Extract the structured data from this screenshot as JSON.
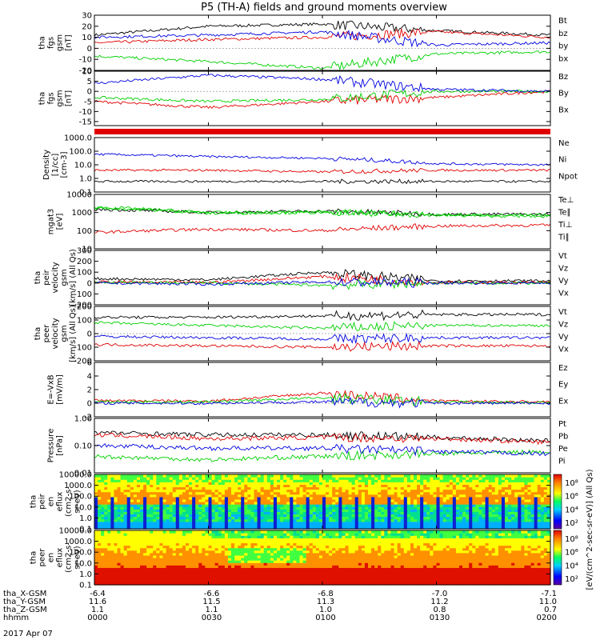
{
  "title": "P5 (TH-A) fields and ground moments overview",
  "colors": {
    "black": "#000000",
    "red": "#e00000",
    "green": "#00d000",
    "blue": "#0000e0"
  },
  "panels": [
    {
      "id": "fgs-gsm",
      "ylabel": [
        "tha",
        "fgs",
        "gsm",
        "[nT]"
      ],
      "yticks": [
        "30",
        "20",
        "10",
        "0",
        "-10",
        "-20"
      ],
      "legend": [
        {
          "t": "Bt",
          "c": "black"
        },
        {
          "t": "bz",
          "c": "red"
        },
        {
          "t": "by",
          "c": "green"
        },
        {
          "t": "bx",
          "c": "blue"
        }
      ]
    },
    {
      "id": "fgs-gsm2",
      "ylabel": [
        "tha",
        "fgs",
        "gsm",
        "[nT]"
      ],
      "yticks": [
        "10",
        "5",
        "0",
        "-5",
        "-10",
        "-15"
      ],
      "legend": [
        {
          "t": "Bz",
          "c": "red"
        },
        {
          "t": "By",
          "c": "green"
        },
        {
          "t": "Bx",
          "c": "blue"
        }
      ]
    },
    {
      "id": "density",
      "ylabel": [
        "Density",
        "[1/cc]",
        "[cm-3]"
      ],
      "yticks": [
        "1000.0",
        "100.0",
        "10.0",
        "1.0",
        "0.1"
      ],
      "legend": [
        {
          "t": "Ne",
          "c": "red"
        },
        {
          "t": "Ni",
          "c": "black"
        },
        {
          "t": "Npot",
          "c": "blue"
        }
      ]
    },
    {
      "id": "temperature",
      "ylabel": [
        "mgat3",
        "[eV]"
      ],
      "yticks": [
        "10000",
        "1000",
        "100",
        "10"
      ],
      "legend": [
        {
          "t": "Te⊥",
          "c": "red"
        },
        {
          "t": "Te∥",
          "c": "black"
        },
        {
          "t": "Ti⊥",
          "c": "green"
        },
        {
          "t": "Ti∥",
          "c": "green"
        }
      ]
    },
    {
      "id": "velocity1",
      "ylabel": [
        "tha",
        "peir",
        "velocity",
        "gsm",
        "[km/s] (All Qs)"
      ],
      "yticks": [
        "300",
        "200",
        "100",
        "0",
        "-100",
        "-200"
      ],
      "legend": [
        {
          "t": "Vt",
          "c": "black"
        },
        {
          "t": "Vz",
          "c": "red"
        },
        {
          "t": "Vy",
          "c": "green"
        },
        {
          "t": "Vx",
          "c": "blue"
        }
      ]
    },
    {
      "id": "velocity2",
      "ylabel": [
        "tha",
        "peer",
        "velocity",
        "gsm",
        "[km/s] (All Qs)"
      ],
      "yticks": [
        "200",
        "100",
        "0",
        "-100",
        "-200"
      ],
      "legend": [
        {
          "t": "Vt",
          "c": "black"
        },
        {
          "t": "Vz",
          "c": "red"
        },
        {
          "t": "Vy",
          "c": "green"
        },
        {
          "t": "Vx",
          "c": "blue"
        }
      ]
    },
    {
      "id": "efield",
      "ylabel": [
        "E=-VxB",
        "[mV/m]"
      ],
      "yticks": [
        "6",
        "4",
        "2",
        "0",
        "-2"
      ],
      "legend": [
        {
          "t": "Ez",
          "c": "red"
        },
        {
          "t": "Ey",
          "c": "green"
        },
        {
          "t": "Ex",
          "c": "blue"
        }
      ]
    },
    {
      "id": "pressure",
      "ylabel": [
        "Pressure",
        "[nPa]"
      ],
      "yticks": [
        "1.00",
        "0.10",
        "0.01"
      ],
      "legend": [
        {
          "t": "Pt",
          "c": "black"
        },
        {
          "t": "Pb",
          "c": "red"
        },
        {
          "t": "Pe",
          "c": "green"
        },
        {
          "t": "Pi",
          "c": "blue"
        }
      ]
    },
    {
      "id": "spec-ion",
      "ylabel": [
        "tha",
        "peir",
        "en",
        "eflux",
        "(cm2-s-",
        "sr-eV)"
      ],
      "yticks": [
        "10000.0",
        "1000.0",
        "100.0",
        "10.0",
        "1.0",
        "0.1"
      ]
    },
    {
      "id": "spec-ele",
      "ylabel": [
        "tha",
        "peer",
        "en",
        "eflux",
        "(cm2-s-",
        "sr-eV)"
      ],
      "yticks": [
        "10000.0",
        "1000.0",
        "100.0",
        "10.0",
        "1.0",
        "0.1"
      ]
    }
  ],
  "colorbar": {
    "ion_ticks": [
      "10⁸",
      "10⁶",
      "10⁴",
      "10²"
    ],
    "ele_ticks": [
      "10⁸",
      "10⁶",
      "10⁴",
      "10²"
    ],
    "label": "[eV/(cm^2-sec-sr-eV)] (All Qs)"
  },
  "xaxis": {
    "rows": [
      {
        "label": "tha_X-GSM",
        "values": [
          "-6.4",
          "-6.6",
          "-6.8",
          "-7.0",
          "-7.1"
        ]
      },
      {
        "label": "tha_Y-GSM",
        "values": [
          "11.6",
          "11.5",
          "11.3",
          "11.2",
          "11.0"
        ]
      },
      {
        "label": "tha_Z-GSM",
        "values": [
          "1.1",
          "1.1",
          "1.0",
          "0.8",
          "0.7"
        ]
      },
      {
        "label": "hhmm",
        "values": [
          "0000",
          "0030",
          "0100",
          "0130",
          "0200"
        ]
      }
    ],
    "date": "2017 Apr 07"
  },
  "chart_data": [
    {
      "type": "line",
      "title": "P5 (TH-A) fields and ground moments overview",
      "panel": "tha fgs gsm [nT]",
      "x": [
        "0000",
        "0030",
        "0100",
        "0130",
        "0200"
      ],
      "ylim": [
        -20,
        30
      ],
      "series": [
        {
          "name": "Bt",
          "values": [
            12,
            20,
            22,
            16,
            12
          ]
        },
        {
          "name": "bz",
          "values": [
            5,
            8,
            10,
            15,
            10
          ]
        },
        {
          "name": "by",
          "values": [
            -7,
            -12,
            -18,
            -5,
            -3
          ]
        },
        {
          "name": "bx",
          "values": [
            10,
            12,
            15,
            3,
            5
          ]
        }
      ]
    },
    {
      "type": "line",
      "panel": "tha fgs gsm [nT]",
      "x": [
        "0000",
        "0030",
        "0100",
        "0130",
        "0200"
      ],
      "ylim": [
        -17,
        10
      ],
      "series": [
        {
          "name": "Bz",
          "values": [
            -5,
            -8,
            -5,
            -3,
            0
          ]
        },
        {
          "name": "By",
          "values": [
            -3,
            -5,
            -4,
            0,
            0
          ]
        },
        {
          "name": "Bx",
          "values": [
            4,
            8,
            6,
            1,
            0
          ]
        }
      ]
    },
    {
      "type": "line",
      "panel": "Density [1/cc] [cm-3]",
      "yscale": "log",
      "x": [
        "0000",
        "0030",
        "0100",
        "0130",
        "0200"
      ],
      "ylim": [
        0.1,
        1000
      ],
      "series": [
        {
          "name": "Ne",
          "values": [
            4,
            4,
            3,
            4,
            4
          ]
        },
        {
          "name": "Ni",
          "values": [
            0.6,
            0.6,
            0.6,
            0.6,
            0.6
          ]
        },
        {
          "name": "Npot",
          "values": [
            60,
            40,
            30,
            12,
            10
          ]
        }
      ]
    },
    {
      "type": "line",
      "panel": "mgat3 [eV]",
      "yscale": "log",
      "x": [
        "0000",
        "0030",
        "0100",
        "0130",
        "0200"
      ],
      "ylim": [
        10,
        10000
      ],
      "series": [
        {
          "name": "Te⊥",
          "values": [
            80,
            120,
            100,
            180,
            200
          ]
        },
        {
          "name": "Te∥",
          "values": [
            1500,
            1000,
            1200,
            800,
            800
          ]
        },
        {
          "name": "Ti⊥",
          "values": [
            1800,
            900,
            1000,
            700,
            600
          ]
        },
        {
          "name": "Ti∥",
          "values": [
            2000,
            1000,
            1100,
            750,
            700
          ]
        }
      ]
    },
    {
      "type": "line",
      "panel": "tha peir velocity gsm [km/s] (All Qs)",
      "x": [
        "0000",
        "0030",
        "0100",
        "0130",
        "0200"
      ],
      "ylim": [
        -200,
        300
      ],
      "series": [
        {
          "name": "Vt",
          "values": [
            40,
            30,
            100,
            20,
            20
          ]
        },
        {
          "name": "Vz",
          "values": [
            10,
            5,
            60,
            5,
            5
          ]
        },
        {
          "name": "Vy",
          "values": [
            5,
            0,
            -20,
            0,
            0
          ]
        },
        {
          "name": "Vx",
          "values": [
            0,
            -10,
            10,
            0,
            0
          ]
        }
      ]
    },
    {
      "type": "line",
      "panel": "tha peer velocity gsm [km/s] (All Qs)",
      "x": [
        "0000",
        "0030",
        "0100",
        "0130",
        "0200"
      ],
      "ylim": [
        -200,
        200
      ],
      "series": [
        {
          "name": "Vt",
          "values": [
            120,
            120,
            130,
            140,
            140
          ]
        },
        {
          "name": "Vz",
          "values": [
            -80,
            -90,
            -100,
            -90,
            -90
          ]
        },
        {
          "name": "Vy",
          "values": [
            80,
            60,
            40,
            60,
            60
          ]
        },
        {
          "name": "Vx",
          "values": [
            -20,
            -30,
            -40,
            -30,
            -30
          ]
        }
      ]
    },
    {
      "type": "line",
      "panel": "E=-VxB [mV/m]",
      "x": [
        "0000",
        "0030",
        "0100",
        "0130",
        "0200"
      ],
      "ylim": [
        -2,
        6
      ],
      "series": [
        {
          "name": "Ez",
          "values": [
            0.4,
            0.3,
            1.5,
            0.3,
            0.2
          ]
        },
        {
          "name": "Ey",
          "values": [
            0.2,
            0.2,
            0.8,
            0.2,
            0.1
          ]
        },
        {
          "name": "Ex",
          "values": [
            0,
            0,
            0.2,
            0,
            0
          ]
        }
      ]
    },
    {
      "type": "line",
      "panel": "Pressure [nPa]",
      "yscale": "log",
      "x": [
        "0000",
        "0030",
        "0100",
        "0130",
        "0200"
      ],
      "ylim": [
        0.01,
        1
      ],
      "series": [
        {
          "name": "Pt",
          "values": [
            0.3,
            0.25,
            0.25,
            0.2,
            0.15
          ]
        },
        {
          "name": "Pb",
          "values": [
            0.25,
            0.18,
            0.2,
            0.18,
            0.13
          ]
        },
        {
          "name": "Pe",
          "values": [
            0.04,
            0.03,
            0.04,
            0.05,
            0.06
          ]
        },
        {
          "name": "Pi",
          "values": [
            0.1,
            0.08,
            0.08,
            0.06,
            0.05
          ]
        }
      ]
    },
    {
      "type": "heatmap",
      "panel": "tha peir en eflux (cm2-s-sr-eV)",
      "yscale": "log",
      "x": [
        "0000",
        "0030",
        "0100",
        "0130",
        "0200"
      ],
      "ylim": [
        0.1,
        10000
      ]
    },
    {
      "type": "heatmap",
      "panel": "tha peer en eflux (cm2-s-sr-eV)",
      "yscale": "log",
      "x": [
        "0000",
        "0030",
        "0100",
        "0130",
        "0200"
      ],
      "ylim": [
        0.1,
        10000
      ]
    }
  ]
}
